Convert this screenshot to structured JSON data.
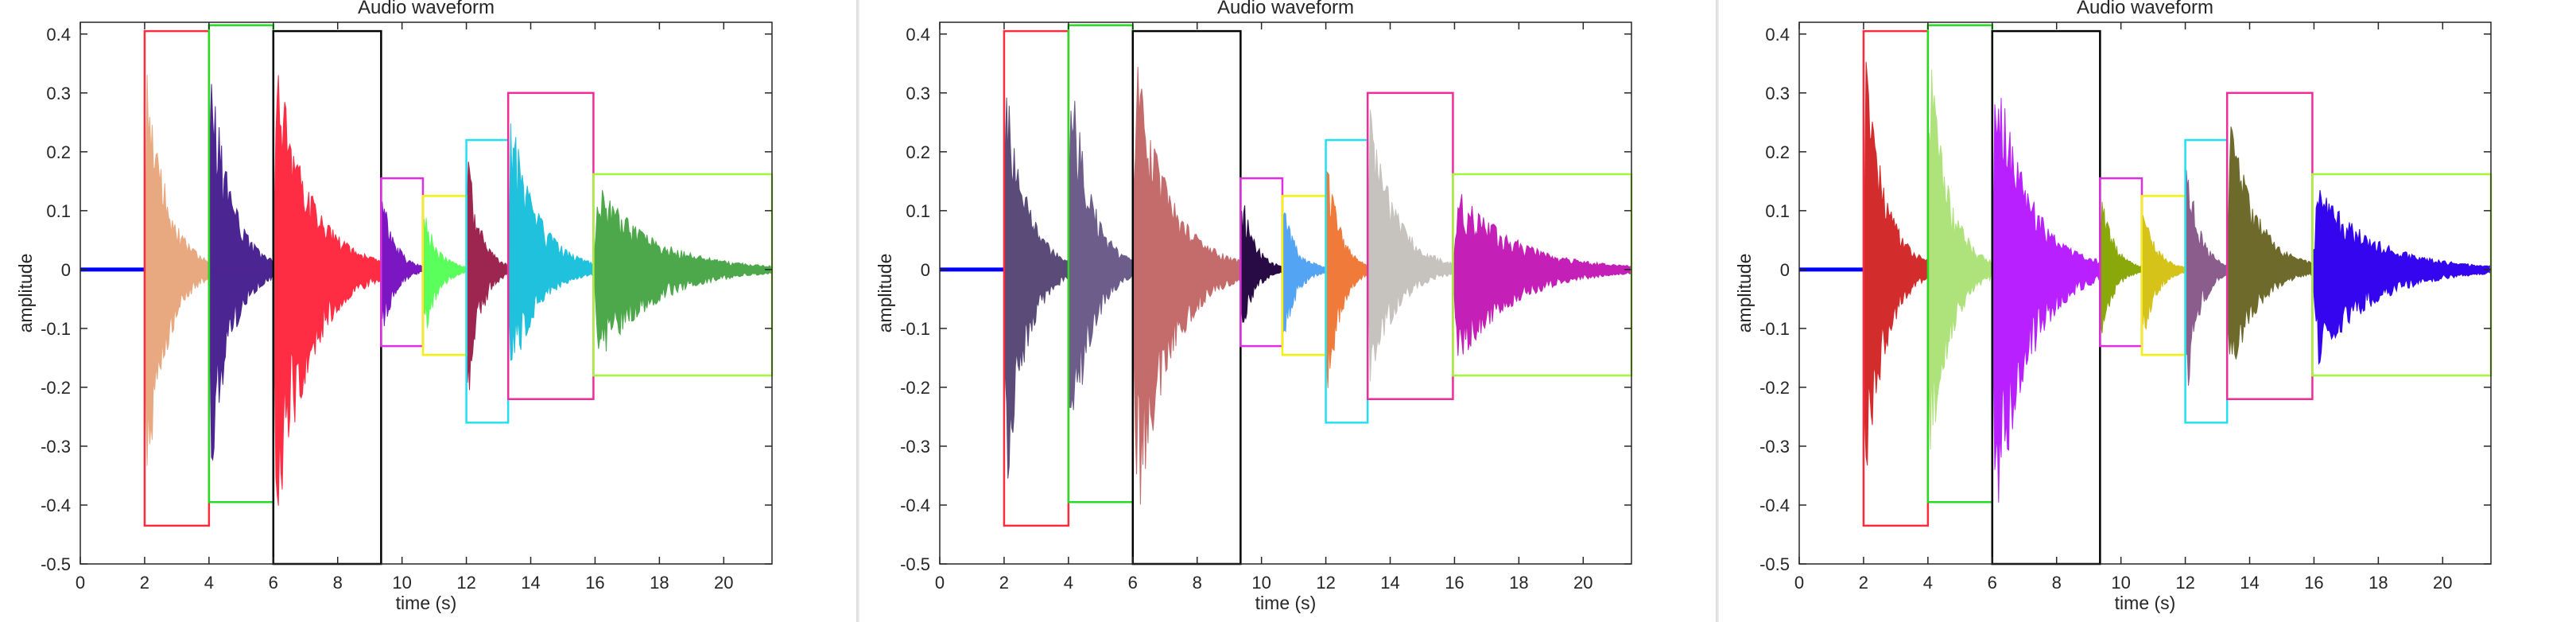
{
  "panels": [
    {
      "title": "Audio waveform",
      "xlabel": "time (s)",
      "ylabel": "amplitude",
      "segment_colors": [
        "#e8a880",
        "#4b2592",
        "#ff2d44",
        "#7b17c2",
        "#5bff5b",
        "#9d2650",
        "#20c1dc",
        "#4ca84b"
      ]
    },
    {
      "title": "Audio waveform",
      "xlabel": "time (s)",
      "ylabel": "amplitude",
      "segment_colors": [
        "#5a4b78",
        "#6d5d8a",
        "#c46b6b",
        "#280a45",
        "#54a4f4",
        "#f07a3a",
        "#c6c2bd",
        "#c41fb6"
      ]
    },
    {
      "title": "Audio waveform",
      "xlabel": "time (s)",
      "ylabel": "amplitude",
      "segment_colors": [
        "#d22c2c",
        "#aee27a",
        "#b820ff",
        "#8aa80a",
        "#d6c31a",
        "#8b5d8d",
        "#6e6a2c",
        "#3405ee"
      ]
    }
  ],
  "chart_data": {
    "type": "line",
    "title": "Audio waveform",
    "xlabel": "time (s)",
    "ylabel": "amplitude",
    "xlim": [
      0,
      21.5
    ],
    "ylim": [
      -0.5,
      0.42
    ],
    "xticks": [
      0,
      2,
      4,
      6,
      8,
      10,
      12,
      14,
      16,
      18,
      20
    ],
    "yticks": [
      -0.5,
      -0.4,
      -0.3,
      -0.2,
      -0.1,
      0,
      0.1,
      0.2,
      0.3,
      0.4
    ],
    "ytick_labels": [
      "-0.5",
      "-0.4",
      "-0.3",
      "-0.2",
      "-0.1",
      "0",
      "0.1",
      "0.2",
      "0.3",
      "0.4"
    ],
    "silence": {
      "x_start": 0,
      "x_end": 2,
      "color": "#0000ff"
    },
    "segments": [
      {
        "x_start": 2.0,
        "x_end": 4.0,
        "peak_top": 0.4,
        "peak_bottom": -0.43
      },
      {
        "x_start": 4.0,
        "x_end": 6.0,
        "peak_top": 0.41,
        "peak_bottom": -0.39
      },
      {
        "x_start": 6.0,
        "x_end": 9.35,
        "peak_top": 0.4,
        "peak_bottom": -0.5
      },
      {
        "x_start": 9.35,
        "x_end": 10.65,
        "peak_top": 0.15,
        "peak_bottom": -0.13
      },
      {
        "x_start": 10.65,
        "x_end": 12.0,
        "peak_top": 0.12,
        "peak_bottom": -0.14
      },
      {
        "x_start": 12.0,
        "x_end": 13.3,
        "peak_top": 0.22,
        "peak_bottom": -0.26
      },
      {
        "x_start": 13.3,
        "x_end": 15.95,
        "peak_top": 0.3,
        "peak_bottom": -0.22
      },
      {
        "x_start": 15.95,
        "x_end": 21.5,
        "peak_top": 0.16,
        "peak_bottom": -0.18
      }
    ],
    "boxes": [
      {
        "x0": 2.0,
        "x1": 4.0,
        "y0": -0.435,
        "y1": 0.405,
        "color": "#ff2a3c"
      },
      {
        "x0": 4.0,
        "x1": 6.0,
        "y0": -0.395,
        "y1": 0.415,
        "color": "#22dd22"
      },
      {
        "x0": 6.0,
        "x1": 9.35,
        "y0": -0.5,
        "y1": 0.405,
        "color": "#000000"
      },
      {
        "x0": 9.35,
        "x1": 10.65,
        "y0": -0.13,
        "y1": 0.155,
        "color": "#e02fe0"
      },
      {
        "x0": 10.65,
        "x1": 12.0,
        "y0": -0.145,
        "y1": 0.125,
        "color": "#f2f20a"
      },
      {
        "x0": 12.0,
        "x1": 13.3,
        "y0": -0.26,
        "y1": 0.22,
        "color": "#22e0f2"
      },
      {
        "x0": 13.3,
        "x1": 15.95,
        "y0": -0.22,
        "y1": 0.3,
        "color": "#ee2c9a"
      },
      {
        "x0": 15.95,
        "x1": 21.5,
        "y0": -0.18,
        "y1": 0.162,
        "color": "#a5f53a"
      }
    ],
    "grid": false
  }
}
